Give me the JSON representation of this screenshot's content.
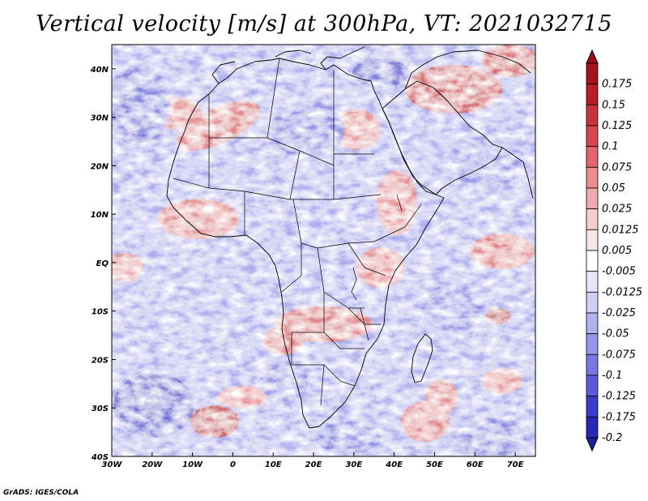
{
  "title": "Vertical velocity [m/s] at 300hPa, VT: 2021032715",
  "footer": "GrADS: IGES/COLA",
  "map": {
    "lon_range": [
      -30,
      75
    ],
    "lat_range": [
      -40,
      45
    ],
    "lon_ticks": [
      {
        "value": -30,
        "label": "30W"
      },
      {
        "value": -20,
        "label": "20W"
      },
      {
        "value": -10,
        "label": "10W"
      },
      {
        "value": 0,
        "label": "0"
      },
      {
        "value": 10,
        "label": "10E"
      },
      {
        "value": 20,
        "label": "20E"
      },
      {
        "value": 30,
        "label": "30E"
      },
      {
        "value": 40,
        "label": "40E"
      },
      {
        "value": 50,
        "label": "50E"
      },
      {
        "value": 60,
        "label": "60E"
      },
      {
        "value": 70,
        "label": "70E"
      }
    ],
    "lat_ticks": [
      {
        "value": 40,
        "label": "40N"
      },
      {
        "value": 30,
        "label": "30N"
      },
      {
        "value": 20,
        "label": "20N"
      },
      {
        "value": 10,
        "label": "10N"
      },
      {
        "value": 0,
        "label": "EQ"
      },
      {
        "value": -10,
        "label": "10S"
      },
      {
        "value": -20,
        "label": "20S"
      },
      {
        "value": -30,
        "label": "30S"
      },
      {
        "value": -40,
        "label": "40S"
      }
    ]
  },
  "colorbar": {
    "levels": [
      {
        "label": "0.175",
        "color": "#a5141e"
      },
      {
        "label": "0.15",
        "color": "#b71e28"
      },
      {
        "label": "0.125",
        "color": "#c8323c"
      },
      {
        "label": "0.1",
        "color": "#d74650"
      },
      {
        "label": "0.075",
        "color": "#e1646e"
      },
      {
        "label": "0.05",
        "color": "#eb8c91"
      },
      {
        "label": "0.025",
        "color": "#f0aaad"
      },
      {
        "label": "0.0125",
        "color": "#f6cdcf"
      },
      {
        "label": "0.005",
        "color": "#fbe6e7"
      },
      {
        "label": "-0.005",
        "color": "#ffffff"
      },
      {
        "label": "-0.0125",
        "color": "#e7e7fb"
      },
      {
        "label": "-0.025",
        "color": "#cfcff6"
      },
      {
        "label": "-0.05",
        "color": "#b1b1f0"
      },
      {
        "label": "-0.075",
        "color": "#9595ea"
      },
      {
        "label": "-0.1",
        "color": "#7878e2"
      },
      {
        "label": "-0.125",
        "color": "#5a5ad8"
      },
      {
        "label": "-0.175",
        "color": "#3c3cc8"
      },
      {
        "label": "-0.2",
        "color": "#2828b4"
      }
    ],
    "top_color": "#a01018",
    "bottom_color": "#1e1ea0"
  }
}
